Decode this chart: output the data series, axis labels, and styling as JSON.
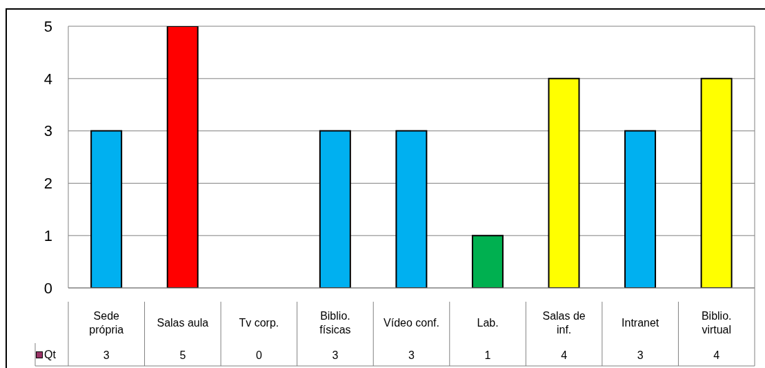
{
  "chart_data": {
    "type": "bar",
    "categories": [
      "Sede própria",
      "Salas aula",
      "Tv corp.",
      "Biblio. físicas",
      "Vídeo conf.",
      "Lab.",
      "Salas de inf.",
      "Intranet",
      "Biblio. virtual"
    ],
    "series": [
      {
        "name": "Qt",
        "color": "#993366",
        "colors": [
          "#00b0f0",
          "#ff0000",
          "#00b0f0",
          "#00b0f0",
          "#00b0f0",
          "#00b050",
          "#ffff00",
          "#00b0f0",
          "#ffff00"
        ],
        "values": [
          3,
          5,
          0,
          3,
          3,
          1,
          4,
          3,
          4
        ]
      }
    ],
    "ylim": [
      0,
      5
    ],
    "yticks": [
      0,
      1,
      2,
      3,
      4,
      5
    ],
    "grid": "y",
    "legend": "bottom left",
    "data_labels": true
  }
}
